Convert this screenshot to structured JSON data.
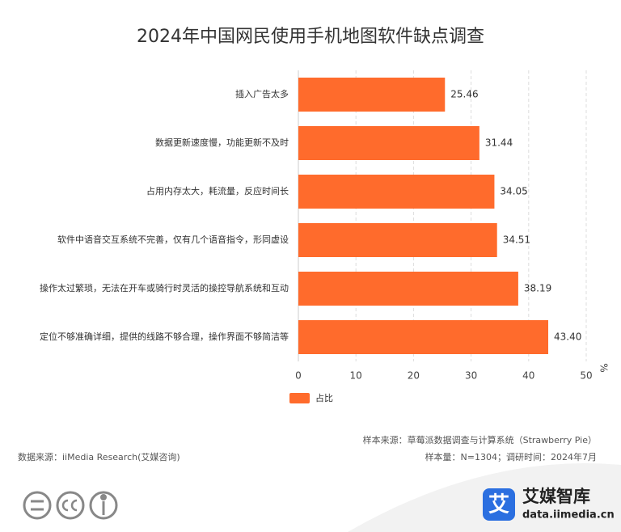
{
  "chart_data": {
    "type": "bar",
    "orientation": "horizontal",
    "title": "2024年中国网民使用手机地图软件缺点调查",
    "categories": [
      "插入广告太多",
      "数据更新速度慢，功能更新不及时",
      "占用内存太大，耗流量，反应时间长",
      "软件中语音交互系统不完善，仅有几个语音指令，形同虚设",
      "操作太过繁琐，无法在开车或骑行时灵活的操控导航系统和互动",
      "定位不够准确详细，提供的线路不够合理，操作界面不够简洁等"
    ],
    "series": [
      {
        "name": "占比",
        "color": "#ff6b2c",
        "values": [
          25.46,
          31.44,
          34.05,
          34.51,
          38.19,
          43.4
        ],
        "value_labels": [
          "25.46",
          "31.44",
          "34.05",
          "34.51",
          "38.19",
          "43.40"
        ]
      }
    ],
    "x_label": "%",
    "xlim": [
      0,
      50
    ],
    "xticks": [
      0,
      10,
      20,
      30,
      40,
      50
    ],
    "grid": true,
    "legend": "bottom"
  },
  "footer": {
    "sample_source": "样本来源：草莓派数据调查与计算系统（Strawberry Pie）",
    "sample_info": "样本量：N=1304；调研时间：2024年7月",
    "data_source": "数据来源：iiMedia Research(艾媒咨询)"
  },
  "brand": {
    "logo_char": "艾",
    "name": "艾媒智库",
    "url": "data.iimedia.cn"
  }
}
